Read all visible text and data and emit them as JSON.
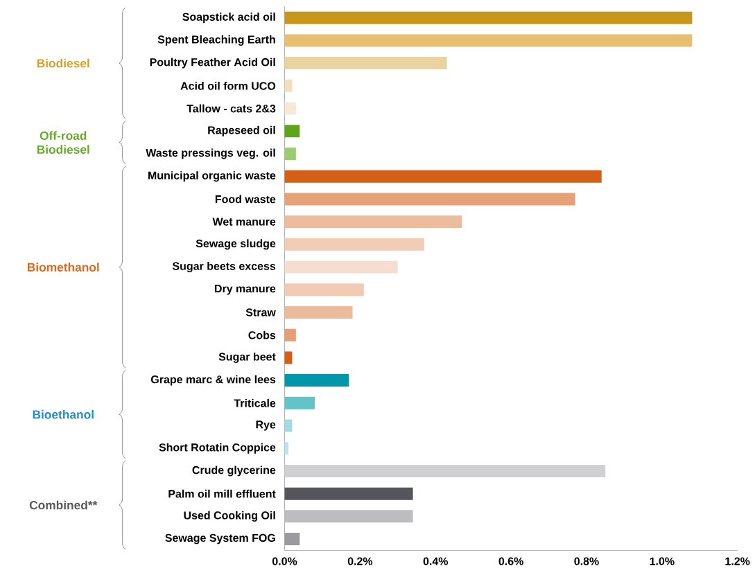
{
  "chart_data": {
    "type": "bar",
    "orientation": "horizontal",
    "categories": [
      "Soapstick acid oil",
      "Spent Bleaching Earth",
      "Poultry Feather Acid Oil",
      "Acid oil form UCO",
      "Tallow - cats 2&3",
      "Rapeseed oil",
      "Waste pressings veg. oil",
      "Municipal organic waste",
      "Food waste",
      "Wet manure",
      "Sewage sludge",
      "Sugar beets excess",
      "Dry manure",
      "Straw",
      "Cobs",
      "Sugar beet",
      "Grape marc & wine lees",
      "Triticale",
      "Rye",
      "Short Rotatin Coppice",
      "Crude glycerine",
      "Palm oil mill effluent",
      "Used Cooking Oil",
      "Sewage System FOG"
    ],
    "values": [
      1.08,
      1.08,
      0.43,
      0.02,
      0.03,
      0.04,
      0.03,
      0.84,
      0.77,
      0.47,
      0.37,
      0.3,
      0.21,
      0.18,
      0.03,
      0.02,
      0.17,
      0.08,
      0.02,
      0.01,
      0.85,
      0.34,
      0.34,
      0.04
    ],
    "colors": [
      "#c8961a",
      "#e8bf70",
      "#e9d3a0",
      "#f1e0bd",
      "#f6e9d6",
      "#5fa51a",
      "#9ccc72",
      "#d45f16",
      "#e6a176",
      "#edbc9c",
      "#f1cdb6",
      "#f7ddd0",
      "#f1cbb4",
      "#ebbb9b",
      "#e49f76",
      "#d45f16",
      "#0098a8",
      "#62c3c9",
      "#a3dbe0",
      "#b9e4e8",
      "#d0d0d3",
      "#55565b",
      "#bdbdbf",
      "#9a9a9f"
    ],
    "xlim": [
      0,
      1.2
    ],
    "xticks": [
      {
        "value": 0,
        "label": "0.0%"
      },
      {
        "value": 0.2,
        "label": "0.2%"
      },
      {
        "value": 0.4,
        "label": "0.4%"
      },
      {
        "value": 0.6,
        "label": "0.6%"
      },
      {
        "value": 0.8,
        "label": "0.8%"
      },
      {
        "value": 1.0,
        "label": "1.0%"
      },
      {
        "value": 1.2,
        "label": "1.2%"
      }
    ],
    "annotations": [
      "Biodiesel",
      "Off-road Biodiesel",
      "Biomethanol",
      "Bioethanol",
      "Combined**"
    ]
  }
}
